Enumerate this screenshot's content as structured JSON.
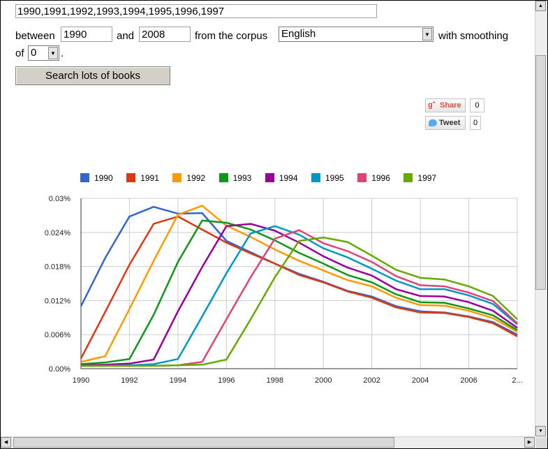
{
  "form": {
    "query_value": "1990,1991,1992,1993,1994,1995,1996,1997",
    "between_label": "between",
    "start_year": "1990",
    "and_label": "and",
    "end_year": "2008",
    "corpus_label": "from the corpus",
    "corpus_value": "English",
    "smoothing_label": "with smoothing",
    "of_label": "of",
    "smoothing_value": "0",
    "period": ".",
    "search_button": "Search lots of books"
  },
  "social": {
    "share_label": "Share",
    "share_count": "0",
    "tweet_label": "Tweet",
    "tweet_count": "0"
  },
  "chart_data": {
    "type": "line",
    "x": [
      1990,
      1991,
      1992,
      1993,
      1994,
      1995,
      1996,
      1997,
      1998,
      1999,
      2000,
      2001,
      2002,
      2003,
      2004,
      2005,
      2006,
      2007,
      2008
    ],
    "xticks": [
      "1990",
      "1992",
      "1994",
      "1996",
      "1998",
      "2000",
      "2002",
      "2004",
      "2006",
      "2..."
    ],
    "xtick_values": [
      1990,
      1992,
      1994,
      1996,
      1998,
      2000,
      2002,
      2004,
      2006,
      2008
    ],
    "yticks": [
      "0.00%",
      "0.006%",
      "0.012%",
      "0.018%",
      "0.024%",
      "0.03%"
    ],
    "ylim": [
      0,
      0.03
    ],
    "xlim": [
      1990,
      2008
    ],
    "grid": true,
    "legend_position": "top",
    "series": [
      {
        "name": "1990",
        "color": "#3366cc",
        "values": [
          0.011,
          0.0195,
          0.0268,
          0.0285,
          0.0273,
          0.0274,
          0.0225,
          0.0205,
          0.0185,
          0.0167,
          0.0153,
          0.0137,
          0.0127,
          0.011,
          0.0101,
          0.0099,
          0.0092,
          0.0082,
          0.006
        ]
      },
      {
        "name": "1991",
        "color": "#dc3912",
        "values": [
          0.0018,
          0.01,
          0.0183,
          0.0255,
          0.0268,
          0.0245,
          0.0222,
          0.0203,
          0.0185,
          0.0165,
          0.0152,
          0.0136,
          0.0125,
          0.0108,
          0.0099,
          0.0098,
          0.0091,
          0.008,
          0.0057
        ]
      },
      {
        "name": "1992",
        "color": "#ff9900",
        "values": [
          0.0012,
          0.0022,
          0.0105,
          0.019,
          0.0271,
          0.0287,
          0.0252,
          0.0232,
          0.021,
          0.019,
          0.0173,
          0.0156,
          0.0145,
          0.0125,
          0.0112,
          0.0111,
          0.0102,
          0.0089,
          0.0065
        ]
      },
      {
        "name": "1993",
        "color": "#109618",
        "values": [
          0.0008,
          0.0011,
          0.0017,
          0.0095,
          0.0188,
          0.0261,
          0.0257,
          0.0245,
          0.0226,
          0.0204,
          0.0185,
          0.0165,
          0.0152,
          0.0131,
          0.0117,
          0.0116,
          0.0106,
          0.0094,
          0.0068
        ]
      },
      {
        "name": "1994",
        "color": "#990099",
        "values": [
          0.0006,
          0.0007,
          0.0009,
          0.0016,
          0.0101,
          0.0179,
          0.0251,
          0.0255,
          0.0243,
          0.0222,
          0.0198,
          0.0178,
          0.0164,
          0.014,
          0.0128,
          0.0127,
          0.0117,
          0.0102,
          0.0072
        ]
      },
      {
        "name": "1995",
        "color": "#0099c6",
        "values": [
          0.0005,
          0.0005,
          0.0006,
          0.0008,
          0.0017,
          0.0092,
          0.0168,
          0.0238,
          0.0251,
          0.0236,
          0.0212,
          0.0196,
          0.0176,
          0.0155,
          0.014,
          0.014,
          0.0129,
          0.0114,
          0.0078
        ]
      },
      {
        "name": "1996",
        "color": "#dd4477",
        "values": [
          0.0005,
          0.0005,
          0.0005,
          0.0005,
          0.0006,
          0.0012,
          0.0087,
          0.0161,
          0.0229,
          0.0244,
          0.0221,
          0.0207,
          0.0188,
          0.0163,
          0.0147,
          0.0145,
          0.0134,
          0.0119,
          0.008
        ]
      },
      {
        "name": "1997",
        "color": "#66aa00",
        "values": [
          0.0005,
          0.0005,
          0.0005,
          0.0005,
          0.0006,
          0.0007,
          0.0016,
          0.0087,
          0.0161,
          0.0225,
          0.0231,
          0.0223,
          0.0199,
          0.0174,
          0.016,
          0.0157,
          0.0145,
          0.0128,
          0.0087
        ]
      }
    ]
  }
}
